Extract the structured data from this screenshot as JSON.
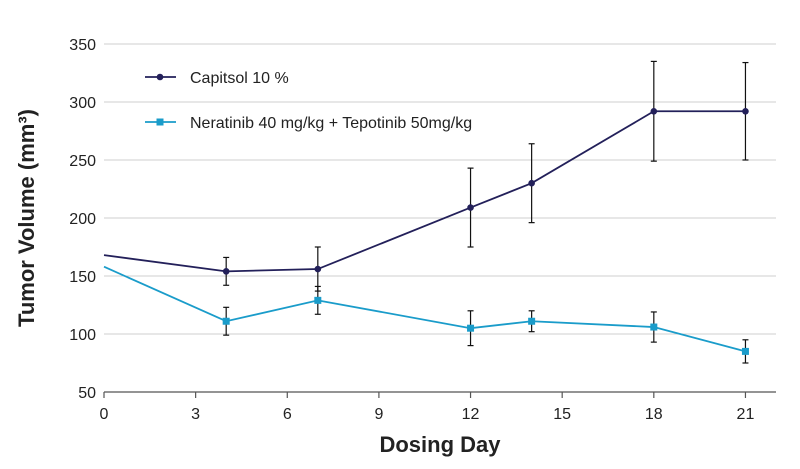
{
  "chart_data": {
    "type": "line",
    "title": "",
    "xlabel": "Dosing Day",
    "ylabel": "Tumor Volume (mm³)",
    "xlim": [
      0,
      22
    ],
    "ylim": [
      50,
      350
    ],
    "xticks": [
      0,
      3,
      6,
      9,
      12,
      15,
      18,
      21
    ],
    "yticks": [
      50,
      100,
      150,
      200,
      250,
      300,
      350
    ],
    "grid": "horizontal",
    "legend_position": "top-left",
    "series": [
      {
        "name": "Capitsol 10 %",
        "color": "#23205a",
        "marker": "circle",
        "x": [
          0,
          4,
          7,
          12,
          14,
          18,
          21
        ],
        "y": [
          168,
          154,
          156,
          209,
          230,
          292,
          292
        ],
        "error": [
          null,
          12,
          19,
          34,
          34,
          43,
          42
        ]
      },
      {
        "name": "Neratinib 40 mg/kg + Tepotinib 50mg/kg",
        "color": "#1a9cca",
        "marker": "square",
        "x": [
          0,
          4,
          7,
          12,
          14,
          18,
          21
        ],
        "y": [
          158,
          111,
          129,
          105,
          111,
          106,
          85
        ],
        "error": [
          null,
          12,
          12,
          15,
          9,
          13,
          10
        ]
      }
    ]
  }
}
